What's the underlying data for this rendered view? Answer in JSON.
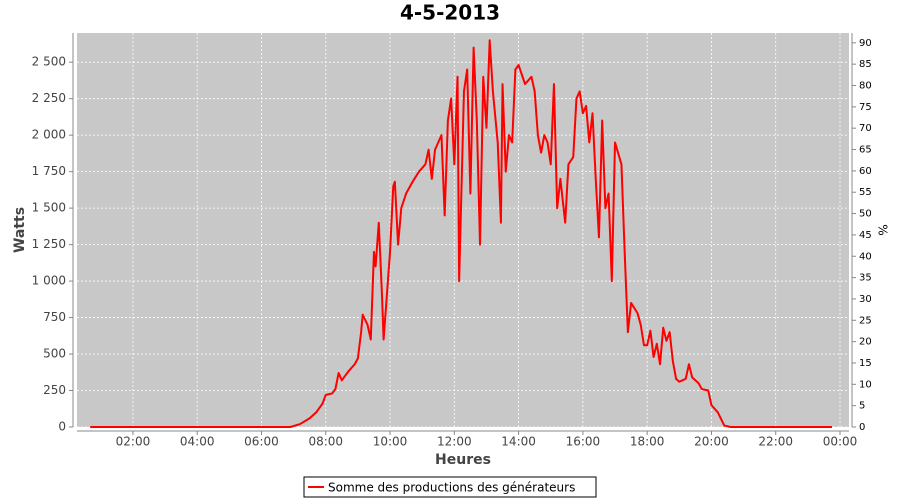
{
  "chart_data": {
    "type": "line",
    "title": "4-5-2013",
    "x_label": "Heures",
    "y_label": "Watts",
    "y2_label": "%",
    "xlim": [
      0.26,
      24.28
    ],
    "xticks": [
      {
        "value": 2,
        "label": "02:00"
      },
      {
        "value": 4,
        "label": "04:00"
      },
      {
        "value": 6,
        "label": "06:00"
      },
      {
        "value": 8,
        "label": "08:00"
      },
      {
        "value": 10,
        "label": "10:00"
      },
      {
        "value": 12,
        "label": "12:00"
      },
      {
        "value": 14,
        "label": "14:00"
      },
      {
        "value": 16,
        "label": "16:00"
      },
      {
        "value": 18,
        "label": "18:00"
      },
      {
        "value": 20,
        "label": "20:00"
      },
      {
        "value": 22,
        "label": "22:00"
      },
      {
        "value": 24,
        "label": "00:00"
      }
    ],
    "ylim": [
      0,
      2700
    ],
    "yticks": [
      0,
      250,
      500,
      750,
      {
        "value": 1000,
        "label": "1 000"
      },
      {
        "value": 1250,
        "label": "1 250"
      },
      {
        "value": 1500,
        "label": "1 500"
      },
      {
        "value": 1750,
        "label": "1 750"
      },
      {
        "value": 2000,
        "label": "2 000"
      },
      {
        "value": 2250,
        "label": "2 250"
      },
      {
        "value": 2500,
        "label": "2 500"
      }
    ],
    "y2lim": [
      0,
      92.3
    ],
    "y2ticks": [
      0,
      5,
      10,
      15,
      20,
      25,
      30,
      35,
      40,
      45,
      50,
      55,
      60,
      65,
      70,
      75,
      80,
      85,
      90
    ],
    "grid": true,
    "legend": "bottom",
    "x": [
      0.67,
      6.9,
      7.2,
      7.5,
      7.7,
      7.9,
      8.0,
      8.2,
      8.3,
      8.4,
      8.5,
      8.7,
      8.9,
      9.0,
      9.1,
      9.15,
      9.3,
      9.4,
      9.5,
      9.55,
      9.65,
      9.75,
      9.8,
      9.9,
      10.0,
      10.1,
      10.15,
      10.25,
      10.35,
      10.5,
      10.7,
      10.9,
      11.1,
      11.2,
      11.3,
      11.4,
      11.6,
      11.7,
      11.8,
      11.9,
      12.0,
      12.1,
      12.15,
      12.3,
      12.4,
      12.5,
      12.6,
      12.7,
      12.8,
      12.9,
      13.0,
      13.1,
      13.2,
      13.35,
      13.45,
      13.5,
      13.6,
      13.7,
      13.8,
      13.9,
      14.0,
      14.2,
      14.4,
      14.5,
      14.6,
      14.7,
      14.8,
      14.9,
      15.0,
      15.1,
      15.2,
      15.3,
      15.45,
      15.55,
      15.7,
      15.8,
      15.9,
      16.0,
      16.1,
      16.2,
      16.3,
      16.4,
      16.5,
      16.6,
      16.7,
      16.8,
      16.9,
      17.0,
      17.2,
      17.3,
      17.4,
      17.5,
      17.7,
      17.8,
      17.9,
      18.0,
      18.1,
      18.2,
      18.3,
      18.4,
      18.5,
      18.6,
      18.7,
      18.8,
      18.9,
      19.0,
      19.2,
      19.3,
      19.4,
      19.6,
      19.7,
      19.9,
      20.0,
      20.2,
      20.4,
      20.6,
      23.75
    ],
    "series": [
      {
        "name": "Somme des productions des  générateurs",
        "color": "#ff0000",
        "values": [
          0,
          0,
          20,
          60,
          100,
          160,
          220,
          230,
          260,
          370,
          320,
          380,
          430,
          470,
          650,
          770,
          700,
          600,
          1200,
          1100,
          1400,
          900,
          600,
          900,
          1200,
          1650,
          1680,
          1250,
          1500,
          1600,
          1680,
          1750,
          1800,
          1900,
          1700,
          1900,
          2000,
          1450,
          2100,
          2250,
          1800,
          2400,
          1000,
          2300,
          2450,
          1600,
          2600,
          2100,
          1250,
          2400,
          2050,
          2650,
          2300,
          1950,
          1400,
          2350,
          1750,
          2000,
          1950,
          2450,
          2480,
          2350,
          2400,
          2300,
          2000,
          1880,
          2000,
          1950,
          1800,
          2350,
          1500,
          1700,
          1400,
          1800,
          1850,
          2250,
          2300,
          2150,
          2200,
          1950,
          2150,
          1700,
          1300,
          2100,
          1500,
          1600,
          1000,
          1950,
          1800,
          1200,
          650,
          850,
          780,
          700,
          560,
          560,
          660,
          480,
          570,
          430,
          680,
          590,
          650,
          450,
          330,
          310,
          330,
          430,
          340,
          300,
          260,
          250,
          150,
          100,
          10,
          0,
          0
        ]
      }
    ]
  }
}
